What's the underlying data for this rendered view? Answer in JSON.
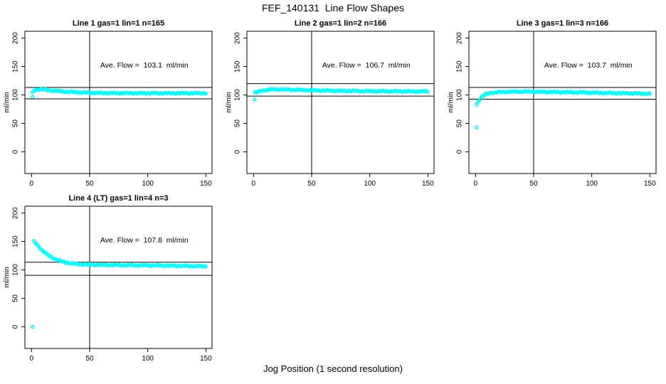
{
  "header": {
    "title": "FEF_140131  Line Flow Shapes"
  },
  "axis": {
    "xlabel": "Jog Position (1 second resolution)",
    "ylabel": "ml/min"
  },
  "chart_data": {
    "type": "scatter",
    "title": "FEF_140131  Line Flow Shapes",
    "xlabel": "Jog Position (1 second resolution)",
    "ylabel": "ml/min",
    "point_color": "#00ffff",
    "line_color": "#000000",
    "grid": false,
    "x_ticks": [
      0,
      50,
      100,
      150
    ],
    "y_ticks": [
      0,
      50,
      100,
      150,
      200
    ],
    "xlim": [
      -5.7,
      155.3
    ],
    "ylim": [
      -38,
      212
    ],
    "vline_x": 50,
    "panels": [
      {
        "title": "Line 1 gas=1 lin=1 n=165",
        "n": 165,
        "ave_flow": 103.1,
        "ave_label": "Ave. Flow =  103.1  ml/min",
        "hlines": [
          113.2,
          93.2
        ],
        "outliers": [
          [
            1,
            97
          ]
        ],
        "keypoints": [
          [
            1,
            104.5
          ],
          [
            2,
            107.5
          ],
          [
            4,
            109.5
          ],
          [
            7,
            110.2
          ],
          [
            12,
            109.2
          ],
          [
            20,
            107.3
          ],
          [
            30,
            105.8
          ],
          [
            45,
            104.3
          ],
          [
            60,
            103.6
          ],
          [
            80,
            103.2
          ],
          [
            110,
            103.1
          ],
          [
            150,
            103.2
          ]
        ]
      },
      {
        "title": "Line 2 gas=1 lin=2 n=166",
        "n": 166,
        "ave_flow": 106.7,
        "ave_label": "Ave. Flow =  106.7  ml/min",
        "hlines": [
          119.9,
          98.1
        ],
        "outliers": [
          [
            1,
            92
          ]
        ],
        "keypoints": [
          [
            1,
            104
          ],
          [
            4,
            105.5
          ],
          [
            8,
            108
          ],
          [
            14,
            109.6
          ],
          [
            22,
            110
          ],
          [
            35,
            109.2
          ],
          [
            50,
            108.3
          ],
          [
            70,
            107.4
          ],
          [
            95,
            106.9
          ],
          [
            120,
            106.6
          ],
          [
            150,
            106.2
          ]
        ]
      },
      {
        "title": "Line 3 gas=1 lin=3 n=166",
        "n": 166,
        "ave_flow": 103.7,
        "ave_label": "Ave. Flow =  103.7  ml/min",
        "hlines": [
          113.2,
          92.6
        ],
        "outliers": [
          [
            1,
            43
          ],
          [
            1,
            83
          ]
        ],
        "keypoints": [
          [
            2,
            87
          ],
          [
            3,
            91
          ],
          [
            5,
            96
          ],
          [
            7,
            99.5
          ],
          [
            10,
            102
          ],
          [
            14,
            104
          ],
          [
            20,
            105
          ],
          [
            30,
            105.8
          ],
          [
            45,
            106
          ],
          [
            60,
            105.4
          ],
          [
            80,
            104.8
          ],
          [
            100,
            104.2
          ],
          [
            125,
            103.2
          ],
          [
            150,
            102.4
          ]
        ]
      },
      {
        "title": "Line 4 (LT) gas=1 lin=4 n=3",
        "n": 3,
        "ave_flow": 107.8,
        "ave_label": "Ave. Flow =  107.8  ml/min",
        "hlines": [
          113.6,
          90.6
        ],
        "outliers": [
          [
            1,
            0
          ]
        ],
        "keypoints": [
          [
            2,
            150
          ],
          [
            4,
            146
          ],
          [
            6,
            141.5
          ],
          [
            9,
            135
          ],
          [
            12,
            129.5
          ],
          [
            15,
            125
          ],
          [
            18,
            121.5
          ],
          [
            22,
            117.8
          ],
          [
            26,
            115
          ],
          [
            30,
            113
          ],
          [
            35,
            111.3
          ],
          [
            40,
            110.3
          ],
          [
            50,
            109.3
          ],
          [
            65,
            108.7
          ],
          [
            85,
            108.3
          ],
          [
            110,
            107.8
          ],
          [
            130,
            107.2
          ],
          [
            150,
            106.5
          ]
        ]
      }
    ]
  }
}
